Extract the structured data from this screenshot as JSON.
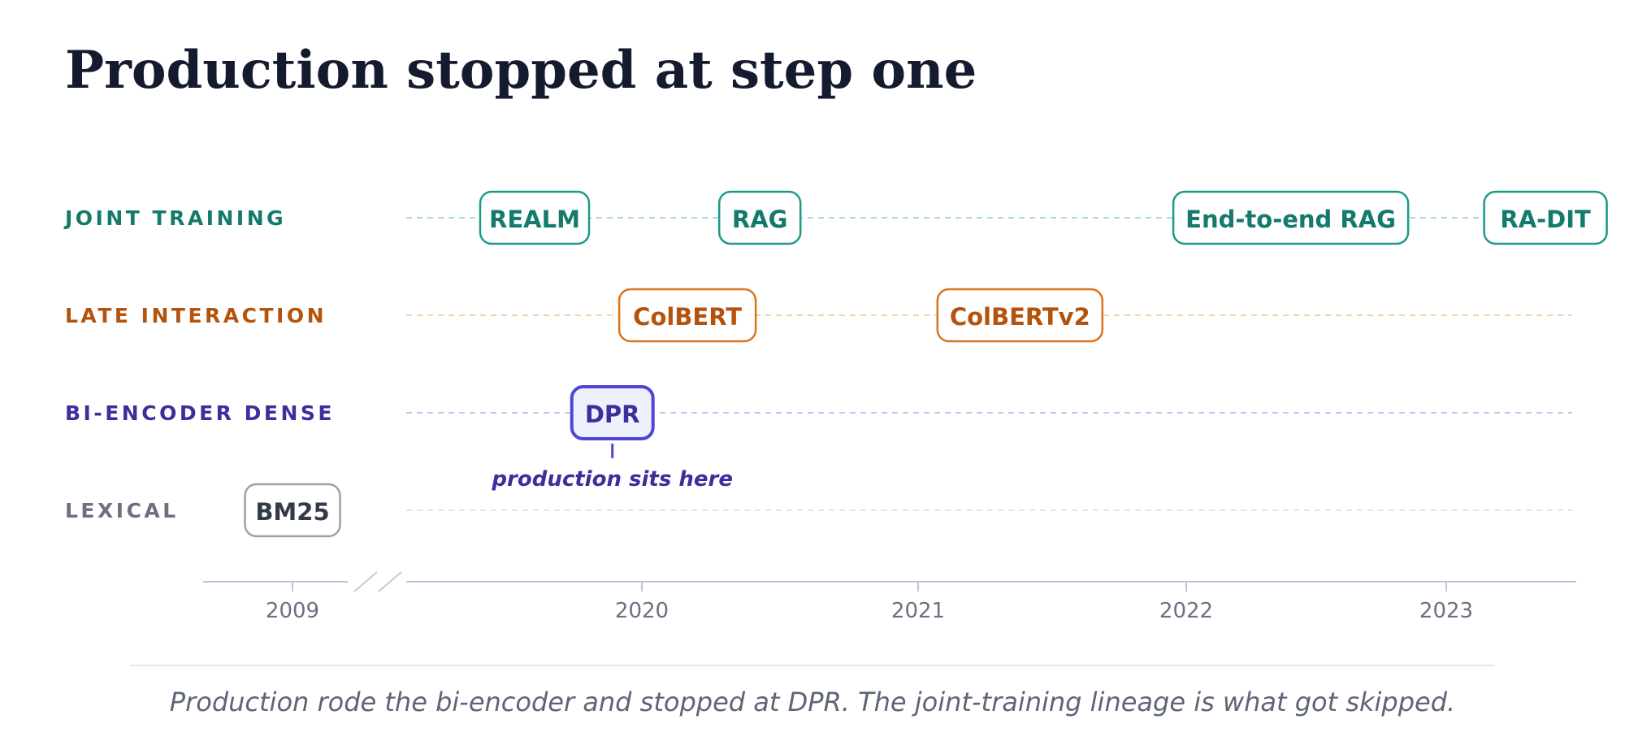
{
  "title": "Production stopped at step one",
  "lanes": [
    {
      "id": "joint",
      "label": "JOINT TRAINING",
      "color": "#137a6c",
      "line_color": "#a7dcd4",
      "fill": "#ffffff",
      "border": "#1a9a88"
    },
    {
      "id": "late",
      "label": "LATE INTERACTION",
      "color": "#b4520e",
      "line_color": "#f5d3a3",
      "fill": "#ffffff",
      "border": "#d9741c"
    },
    {
      "id": "bienc",
      "label": "BI-ENCODER DENSE",
      "color": "#3b2f9e",
      "line_color": "#c3c3f2",
      "fill": "#eef0fc",
      "border": "#5046d6"
    },
    {
      "id": "lexical",
      "label": "LEXICAL",
      "color": "#6b7180",
      "line_color": "#e2e4ea",
      "fill": "#ffffff",
      "border": "#9ca1ad"
    }
  ],
  "nodes": [
    {
      "label": "REALM",
      "lane": "joint",
      "year": 2019.6
    },
    {
      "label": "RAG",
      "lane": "joint",
      "year": 2020.44
    },
    {
      "label": "End-to-end RAG",
      "lane": "joint",
      "year": 2022.42
    },
    {
      "label": "RA-DIT",
      "lane": "joint",
      "year": 2023.37
    },
    {
      "label": "ColBERT",
      "lane": "late",
      "year": 2020.17
    },
    {
      "label": "ColBERTv2",
      "lane": "late",
      "year": 2021.41
    },
    {
      "label": "DPR",
      "lane": "bienc",
      "year": 2019.89,
      "highlight": true
    },
    {
      "label": "BM25",
      "lane": "lexical",
      "year": 2009
    }
  ],
  "axis": {
    "ticks": [
      "2009",
      "2020",
      "2021",
      "2022",
      "2023"
    ],
    "break_between": [
      "2009",
      "2020"
    ]
  },
  "annotation": {
    "text": "production sits here",
    "target": "DPR"
  },
  "caption": "Production rode the bi-encoder and stopped at DPR. The joint-training lineage is what got skipped.",
  "accent_colors": {
    "title": "#151b2e",
    "axis": "#c5c2dc",
    "highlight": "#5046d6"
  }
}
